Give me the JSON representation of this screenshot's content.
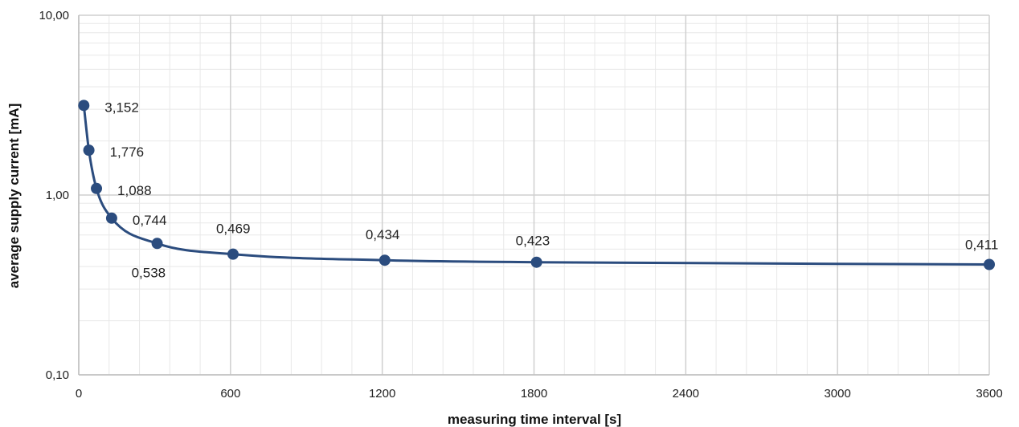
{
  "chart_data": {
    "type": "scatter",
    "title": "",
    "xlabel": "measuring time interval [s]",
    "ylabel": "average supply current [mA]",
    "x_scale": "linear",
    "y_scale": "log",
    "xlim": [
      0,
      3600
    ],
    "ylim": [
      0.1,
      10
    ],
    "x_ticks": [
      0,
      600,
      1200,
      1800,
      2400,
      3000,
      3600
    ],
    "x_tick_labels": [
      "0",
      "600",
      "1200",
      "1800",
      "2400",
      "3000",
      "3600"
    ],
    "y_ticks": [
      0.1,
      1,
      10
    ],
    "y_tick_labels": [
      "0,10",
      "1,00",
      "10,00"
    ],
    "grid": true,
    "legend": "none",
    "series": [
      {
        "x": [
          20,
          40,
          70,
          130,
          310,
          610,
          1210,
          1810,
          3600
        ],
        "y": [
          3.152,
          1.776,
          1.088,
          0.744,
          0.538,
          0.469,
          0.434,
          0.423,
          0.411
        ],
        "labels": [
          "3,152",
          "1,776",
          "1,088",
          "0,744",
          "0,538",
          "0,469",
          "0,434",
          "0,423",
          "0,411"
        ],
        "color": "#2b4c7e"
      }
    ]
  }
}
